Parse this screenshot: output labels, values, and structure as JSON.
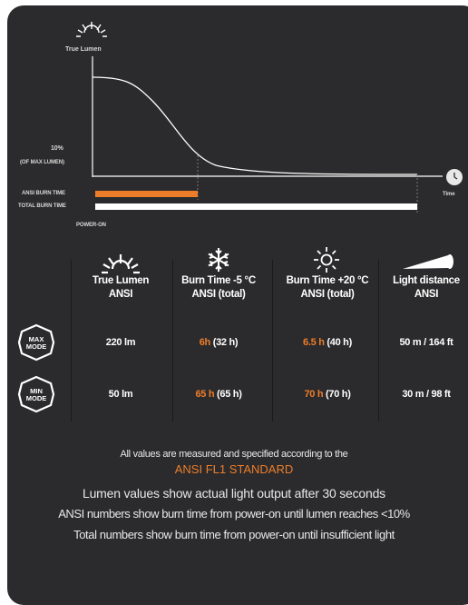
{
  "graph": {
    "true_lumen_label": "True Lumen",
    "ten_percent_label": "10%",
    "of_max_label": "(OF MAX LUMEN)",
    "time_label": "Time",
    "ansi_burn_label": "ANSI BURN TIME",
    "total_burn_label": "TOTAL BURN TIME",
    "power_on_label": "POWER-ON",
    "accent_color": "#ee7d2a"
  },
  "table": {
    "headers": [
      {
        "line1": "True Lumen",
        "line2": "ANSI",
        "icon": "sun-rays-icon"
      },
      {
        "line1": "Burn Time -5 °C",
        "line2": "ANSI (total)",
        "icon": "snowflake-icon"
      },
      {
        "line1": "Burn Time +20 °C",
        "line2": "ANSI (total)",
        "icon": "sun-icon"
      },
      {
        "line1": "Light distance",
        "line2": "ANSI",
        "icon": "light-beam-icon"
      }
    ],
    "rows": [
      {
        "mode_line1": "MAX",
        "mode_line2": "MODE",
        "lumen": "220 lm",
        "cold_ansi": "6h",
        "cold_total": "(32 h)",
        "warm_ansi": "6.5 h",
        "warm_total": "(40 h)",
        "distance": "50 m / 164 ft"
      },
      {
        "mode_line1": "MIN",
        "mode_line2": "MODE",
        "lumen": "50 lm",
        "cold_ansi": "65 h",
        "cold_total": "(65 h)",
        "warm_ansi": "70 h",
        "warm_total": "(70 h)",
        "distance": "30 m / 98 ft"
      }
    ]
  },
  "notes": {
    "measured": "All values are measured and specified according to the",
    "standard": "ANSI FL1 STANDARD",
    "lumen_note": "Lumen values show actual light output after 30 seconds",
    "ansi_note": "ANSI numbers show burn time from power-on until lumen reaches <10%",
    "total_note": "Total numbers show burn time from power-on until insufficient light"
  }
}
